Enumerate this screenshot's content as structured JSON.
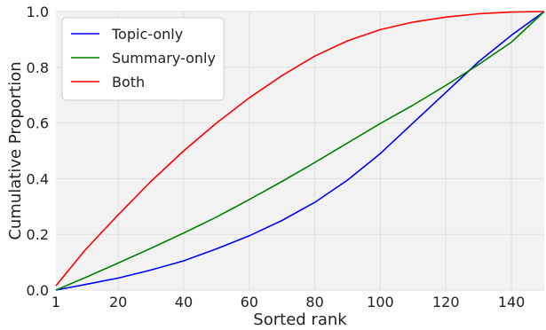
{
  "chart_data": {
    "type": "line",
    "title": "",
    "xlabel": "Sorted rank",
    "ylabel": "Cumulative Proportion",
    "xlim": [
      1,
      150
    ],
    "ylim": [
      0.0,
      1.0
    ],
    "x_ticks": [
      1,
      20,
      40,
      60,
      80,
      100,
      120,
      140
    ],
    "y_ticks": [
      0.0,
      0.2,
      0.4,
      0.6,
      0.8,
      1.0
    ],
    "y_tick_labels": [
      "0.0",
      "0.2",
      "0.4",
      "0.6",
      "0.8",
      "1.0"
    ],
    "grid": true,
    "legend_position": "top-left",
    "background": "#f2f2f2",
    "series": [
      {
        "name": "Topic-only",
        "color": "#0000ff",
        "x": [
          1,
          10,
          20,
          30,
          40,
          50,
          60,
          70,
          80,
          90,
          100,
          110,
          120,
          130,
          140,
          150
        ],
        "y": [
          0.0,
          0.02,
          0.043,
          0.072,
          0.105,
          0.148,
          0.195,
          0.25,
          0.315,
          0.395,
          0.49,
          0.6,
          0.71,
          0.82,
          0.915,
          1.0
        ]
      },
      {
        "name": "Summary-only",
        "color": "#008000",
        "x": [
          1,
          10,
          20,
          30,
          40,
          50,
          60,
          70,
          80,
          90,
          100,
          110,
          120,
          130,
          140,
          150
        ],
        "y": [
          0.0,
          0.045,
          0.097,
          0.15,
          0.205,
          0.262,
          0.325,
          0.39,
          0.458,
          0.528,
          0.598,
          0.664,
          0.735,
          0.81,
          0.89,
          1.0
        ]
      },
      {
        "name": "Both",
        "color": "#ff0000",
        "x": [
          1,
          10,
          20,
          30,
          40,
          50,
          60,
          70,
          80,
          90,
          100,
          110,
          120,
          130,
          140,
          150
        ],
        "y": [
          0.015,
          0.145,
          0.27,
          0.39,
          0.5,
          0.6,
          0.69,
          0.77,
          0.84,
          0.895,
          0.935,
          0.962,
          0.98,
          0.992,
          0.998,
          1.0
        ]
      }
    ]
  }
}
